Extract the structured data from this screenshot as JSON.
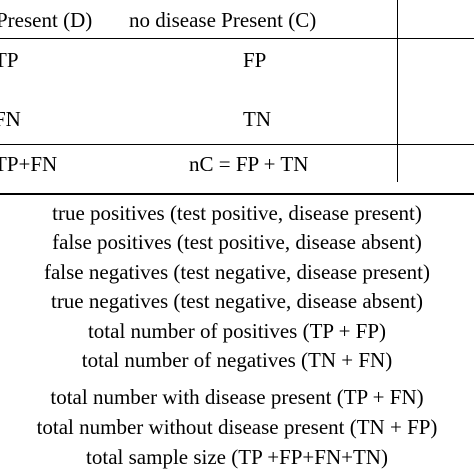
{
  "table": {
    "header": {
      "col_disease_present": "Present (D)",
      "col_no_disease_present": "no disease Present (C)"
    },
    "rows": [
      {
        "left": "TP",
        "right": "FP"
      },
      {
        "left": "FN",
        "right": "TN"
      }
    ],
    "totals": {
      "left": "TP+FN",
      "right": "nC = FP + TN"
    }
  },
  "definitions": [
    "true positives (test positive, disease present)",
    "false positives (test positive, disease absent)",
    "false negatives (test negative, disease present)",
    "true negatives (test negative, disease absent)",
    "total number of positives (TP + FP)",
    "total number of negatives (TN + FN)",
    "total number with disease present (TP + FN)",
    "total number without disease present (TN + FP)",
    "total sample size (TP +FP+FN+TN)"
  ]
}
